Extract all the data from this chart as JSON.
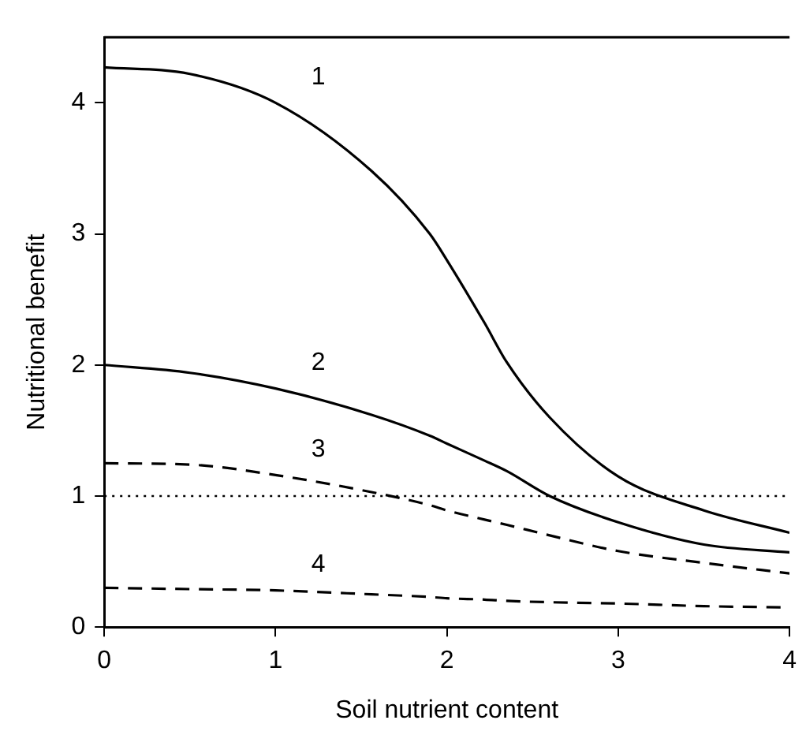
{
  "chart_data": {
    "type": "line",
    "xlabel": "Soil nutrient content",
    "ylabel": "Nutritional benefit",
    "x": [
      0,
      0.5,
      1,
      1.56,
      1.9,
      2,
      2.22,
      2.35,
      2.6,
      3,
      3.5,
      4
    ],
    "xlim": [
      0,
      4
    ],
    "ylim": [
      0,
      4.5
    ],
    "xticks": [
      0,
      1,
      2,
      3,
      4
    ],
    "yticks": [
      0,
      1,
      2,
      3,
      4
    ],
    "grid": false,
    "legend": false,
    "marker": "none",
    "series": [
      {
        "name": "1",
        "color": "#000000",
        "line_style": "solid",
        "values": [
          4.27,
          4.22,
          4.0,
          3.48,
          3.0,
          2.8,
          2.32,
          2.02,
          1.6,
          1.15,
          0.89,
          0.72
        ]
      },
      {
        "name": "2",
        "color": "#000000",
        "line_style": "solid",
        "values": [
          2.0,
          1.94,
          1.82,
          1.62,
          1.46,
          1.4,
          1.27,
          1.19,
          1.0,
          0.8,
          0.63,
          0.57
        ]
      },
      {
        "name": "3",
        "color": "#000000",
        "line_style": "dashed",
        "values": [
          1.25,
          1.24,
          1.16,
          1.03,
          0.93,
          0.89,
          0.82,
          0.78,
          0.7,
          0.58,
          0.49,
          0.41
        ]
      },
      {
        "name": "4",
        "color": "#000000",
        "line_style": "dashed",
        "values": [
          0.3,
          0.29,
          0.28,
          0.25,
          0.23,
          0.22,
          0.21,
          0.2,
          0.19,
          0.18,
          0.16,
          0.15
        ]
      }
    ],
    "ref_lines": [
      {
        "axis": "y",
        "value": 1,
        "line_style": "dotted",
        "color": "#000000"
      }
    ]
  }
}
